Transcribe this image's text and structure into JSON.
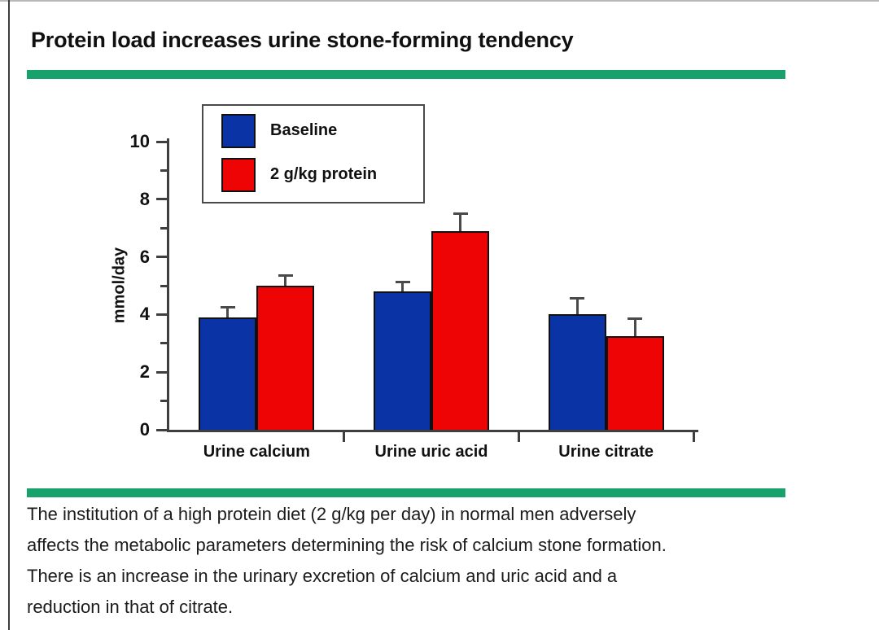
{
  "header": {
    "title": "Protein load increases urine stone-forming tendency"
  },
  "colors": {
    "accent_divider": "#16a26a",
    "baseline_bar": "#0a34a6",
    "protein_bar": "#ee0404",
    "axis": "#3f3f3f",
    "error_bar": "#4a4a4a",
    "bar_outline": "#101010",
    "legend_border": "#4a4a4a"
  },
  "chart_data": {
    "type": "bar",
    "title": "",
    "categories": [
      "Urine calcium",
      "Urine uric acid",
      "Urine citrate"
    ],
    "series": [
      {
        "name": "Baseline",
        "color": "#0a34a6",
        "values": [
          3.9,
          4.8,
          4.0
        ],
        "errors": [
          0.35,
          0.3,
          0.55
        ]
      },
      {
        "name": "2 g/kg protein",
        "color": "#ee0404",
        "values": [
          5.0,
          6.9,
          3.25
        ],
        "errors": [
          0.35,
          0.6,
          0.6
        ]
      }
    ],
    "xlabel": "",
    "ylabel": "mmol/day",
    "ylim": [
      0,
      10
    ],
    "yticks": [
      0,
      2,
      4,
      6,
      8,
      10
    ],
    "grid": false,
    "legend_position": "top-left-inside",
    "error_bars": true
  },
  "caption": {
    "text": "The institution of a high protein diet (2 g/kg per day) in normal men adversely\naffects the metabolic parameters determining the risk of calcium stone formation.\nThere is an increase in the urinary excretion of calcium and uric acid and a\nreduction in that of citrate."
  }
}
